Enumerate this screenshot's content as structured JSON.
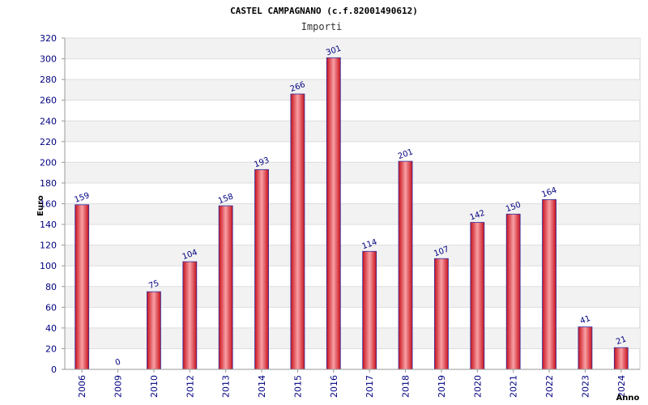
{
  "chart_data": {
    "type": "bar",
    "title": "CASTEL CAMPAGNANO (c.f.82001490612)",
    "subtitle": "Importi",
    "xlabel": "Anno",
    "ylabel": "Euro",
    "ylim": [
      0,
      320
    ],
    "yticks": [
      0,
      20,
      40,
      60,
      80,
      100,
      120,
      140,
      160,
      180,
      200,
      220,
      240,
      260,
      280,
      300,
      320
    ],
    "grid": "horizontal bands",
    "categories": [
      "2006",
      "2009",
      "2010",
      "2012",
      "2013",
      "2014",
      "2015",
      "2016",
      "2017",
      "2018",
      "2019",
      "2020",
      "2021",
      "2022",
      "2023",
      "2024"
    ],
    "values": [
      159,
      0,
      75,
      104,
      158,
      193,
      266,
      301,
      114,
      201,
      107,
      142,
      150,
      164,
      41,
      21
    ],
    "data_labels": [
      "159",
      "0",
      "75",
      "104",
      "158",
      "193",
      "266",
      "301",
      "114",
      "201",
      "107",
      "142",
      "150",
      "164",
      "41",
      "21"
    ],
    "colors": {
      "bar": "#e8202c",
      "bar_highlight": "#f8a0a4",
      "bar_edge": "#3030a0",
      "band": "#f2f2f2",
      "tick_text": "#000080"
    }
  }
}
